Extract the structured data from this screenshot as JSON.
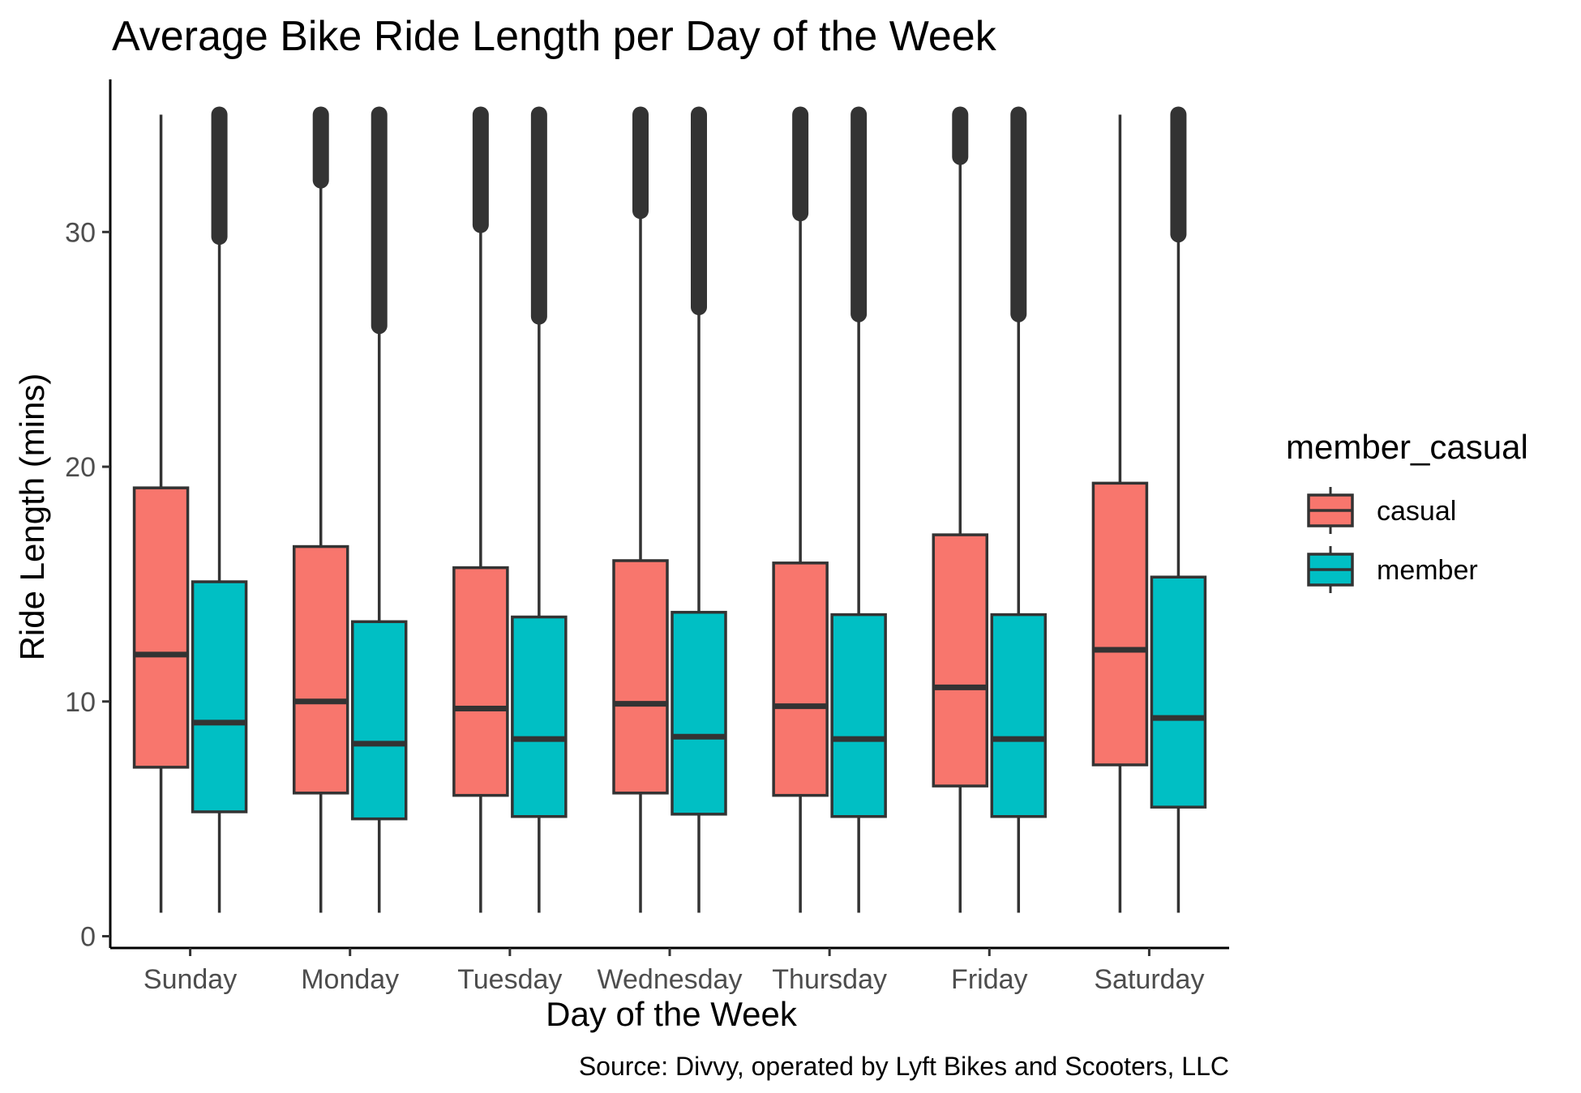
{
  "chart_data": {
    "type": "boxplot",
    "title": "Average Bike Ride Length per Day of the Week",
    "xlabel": "Day of the Week",
    "ylabel": "Ride Length (mins)",
    "caption": "Source: Divvy, operated by Lyft Bikes and Scooters, LLC",
    "ylim": [
      -0.5,
      36.5
    ],
    "yticks": [
      0,
      10,
      20,
      30
    ],
    "categories": [
      "Sunday",
      "Monday",
      "Tuesday",
      "Wednesday",
      "Thursday",
      "Friday",
      "Saturday"
    ],
    "legend": {
      "title": "member_casual",
      "position": "right"
    },
    "grid": false,
    "series": [
      {
        "name": "casual",
        "color": "#F8766D",
        "boxes": [
          {
            "min": 1.0,
            "q1": 7.2,
            "median": 12.0,
            "q3": 19.1,
            "whisker_high": 35.0,
            "outliers_from": null,
            "outliers_to": null
          },
          {
            "min": 1.0,
            "q1": 6.1,
            "median": 10.0,
            "q3": 16.6,
            "whisker_high": 32.0,
            "outliers_from": 32.2,
            "outliers_to": 35.0
          },
          {
            "min": 1.0,
            "q1": 6.0,
            "median": 9.7,
            "q3": 15.7,
            "whisker_high": 30.1,
            "outliers_from": 30.3,
            "outliers_to": 35.0
          },
          {
            "min": 1.0,
            "q1": 6.1,
            "median": 9.9,
            "q3": 16.0,
            "whisker_high": 30.7,
            "outliers_from": 30.9,
            "outliers_to": 35.0
          },
          {
            "min": 1.0,
            "q1": 6.0,
            "median": 9.8,
            "q3": 15.9,
            "whisker_high": 30.6,
            "outliers_from": 30.8,
            "outliers_to": 35.0
          },
          {
            "min": 1.0,
            "q1": 6.4,
            "median": 10.6,
            "q3": 17.1,
            "whisker_high": 33.0,
            "outliers_from": 33.2,
            "outliers_to": 35.0
          },
          {
            "min": 1.0,
            "q1": 7.3,
            "median": 12.2,
            "q3": 19.3,
            "whisker_high": 35.0,
            "outliers_from": null,
            "outliers_to": null
          }
        ]
      },
      {
        "name": "member",
        "color": "#00BFC4",
        "boxes": [
          {
            "min": 1.0,
            "q1": 5.3,
            "median": 9.1,
            "q3": 15.1,
            "whisker_high": 29.6,
            "outliers_from": 29.8,
            "outliers_to": 35.0
          },
          {
            "min": 1.0,
            "q1": 5.0,
            "median": 8.2,
            "q3": 13.4,
            "whisker_high": 25.8,
            "outliers_from": 26.0,
            "outliers_to": 35.0
          },
          {
            "min": 1.0,
            "q1": 5.1,
            "median": 8.4,
            "q3": 13.6,
            "whisker_high": 26.2,
            "outliers_from": 26.4,
            "outliers_to": 35.0
          },
          {
            "min": 1.0,
            "q1": 5.2,
            "median": 8.5,
            "q3": 13.8,
            "whisker_high": 26.6,
            "outliers_from": 26.8,
            "outliers_to": 35.0
          },
          {
            "min": 1.0,
            "q1": 5.1,
            "median": 8.4,
            "q3": 13.7,
            "whisker_high": 26.3,
            "outliers_from": 26.5,
            "outliers_to": 35.0
          },
          {
            "min": 1.0,
            "q1": 5.1,
            "median": 8.4,
            "q3": 13.7,
            "whisker_high": 26.3,
            "outliers_from": 26.5,
            "outliers_to": 35.0
          },
          {
            "min": 1.0,
            "q1": 5.5,
            "median": 9.3,
            "q3": 15.3,
            "whisker_high": 29.7,
            "outliers_from": 29.9,
            "outliers_to": 35.0
          }
        ]
      }
    ]
  }
}
